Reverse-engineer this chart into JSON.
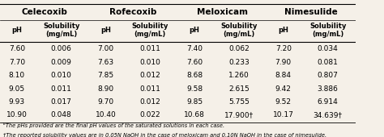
{
  "drug_names": [
    "Celecoxib",
    "Rofecoxib",
    "Meloxicam",
    "Nimesulide"
  ],
  "col_headers": [
    "pH",
    "Solubility\n(mg/mL)",
    "pH",
    "Solubility\n(mg/mL)",
    "pH",
    "Solubility\n(mg/mL)",
    "pH",
    "Solubility\n(mg/mL)"
  ],
  "rows": [
    [
      "7.60",
      "0.006",
      "7.00",
      "0.011",
      "7.40",
      "0.062",
      "7.20",
      "0.034"
    ],
    [
      "7.70",
      "0.009",
      "7.63",
      "0.010",
      "7.60",
      "0.233",
      "7.90",
      "0.081"
    ],
    [
      "8.10",
      "0.010",
      "7.85",
      "0.012",
      "8.68",
      "1.260",
      "8.84",
      "0.807"
    ],
    [
      "9.05",
      "0.011",
      "8.90",
      "0.011",
      "9.58",
      "2.615",
      "9.42",
      "3.886"
    ],
    [
      "9.93",
      "0.017",
      "9.70",
      "0.012",
      "9.85",
      "5.755",
      "9.52",
      "6.914"
    ],
    [
      "10.90",
      "0.048",
      "10.40",
      "0.022",
      "10.68",
      "17.900†",
      "10.17",
      "34.639†"
    ]
  ],
  "footnote_a": "ᵇThe pHs provided are the final pH values of the saturated solutions in each case.",
  "footnote_b": "†The reported solubility values are in 0.05N NaOH in the case of meloxicam and 0.10N NaOH in the case of nimesulide.",
  "bg_color": "#f5f0e8",
  "header_bg": "#e8e0d0"
}
